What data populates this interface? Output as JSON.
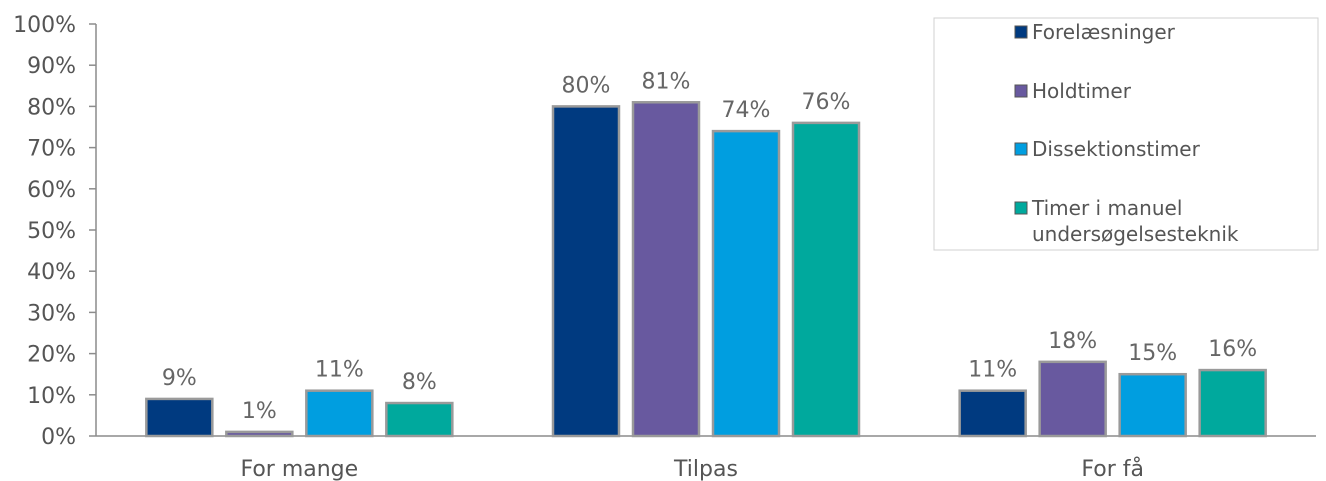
{
  "chart_data": {
    "type": "bar",
    "categories": [
      "For mange",
      "Tilpas",
      "For få"
    ],
    "series": [
      {
        "name": "Forelæsninger",
        "color": "#003a80",
        "values": [
          9,
          80,
          11
        ]
      },
      {
        "name": "Holdtimer",
        "color": "#68599f",
        "values": [
          1,
          81,
          18
        ]
      },
      {
        "name": "Dissektionstimer",
        "color": "#009ee0",
        "values": [
          11,
          74,
          15
        ]
      },
      {
        "name": "Timer i manuel undersøgelsesteknik",
        "legend_lines": [
          "Timer i manuel",
          "undersøgelsesteknik"
        ],
        "color": "#00a99d",
        "values": [
          8,
          76,
          16
        ]
      }
    ],
    "yticks": [
      "0%",
      "10%",
      "20%",
      "30%",
      "40%",
      "50%",
      "60%",
      "70%",
      "80%",
      "90%",
      "100%"
    ],
    "ylim": [
      0,
      100
    ],
    "unit": "%",
    "grid": false,
    "legend_position": "top-right",
    "title": "",
    "xlabel": "",
    "ylabel": ""
  }
}
